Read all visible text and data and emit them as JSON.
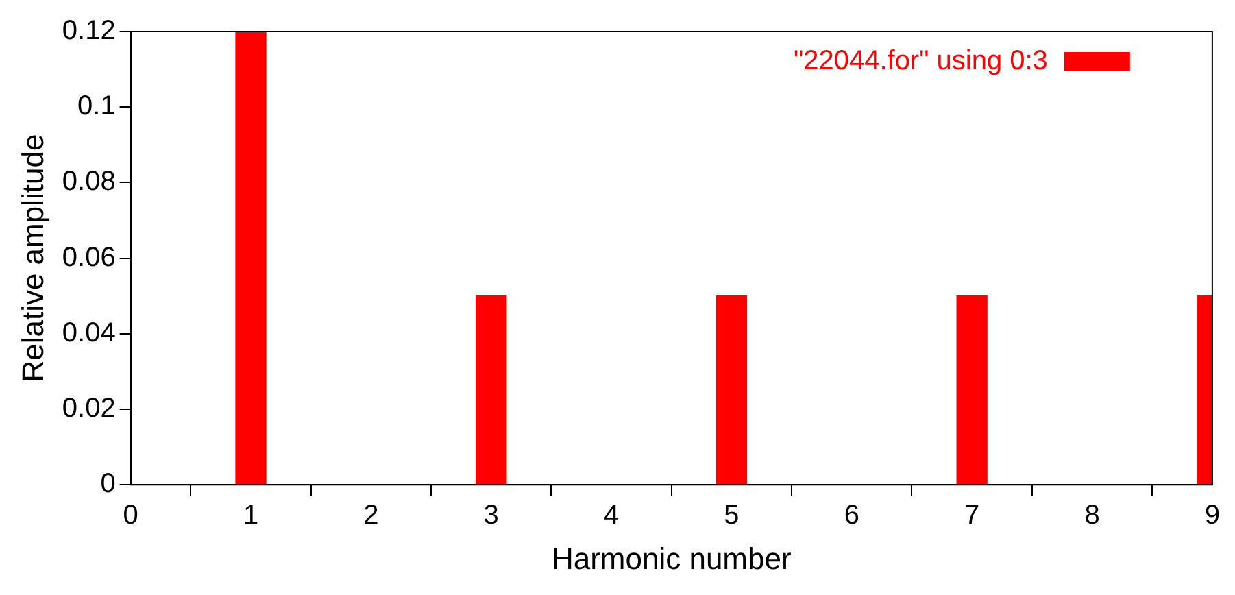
{
  "chart_data": {
    "type": "bar",
    "xlabel": "Harmonic number",
    "ylabel": "Relative amplitude",
    "x": [
      1,
      3,
      5,
      7,
      9
    ],
    "series": [
      {
        "name": "\"22044.for\" using 0:3",
        "color": "#ff0000",
        "values": [
          0.12,
          0.05,
          0.05,
          0.05,
          0.05
        ]
      }
    ],
    "xlim": [
      0,
      9
    ],
    "xticks": [
      0,
      1,
      2,
      3,
      4,
      5,
      6,
      7,
      8,
      9
    ],
    "ylim": [
      0,
      0.12
    ],
    "yticks": [
      0,
      0.02,
      0.04,
      0.06,
      0.08,
      0.1,
      0.12
    ],
    "grid": false,
    "legend": "top right"
  }
}
